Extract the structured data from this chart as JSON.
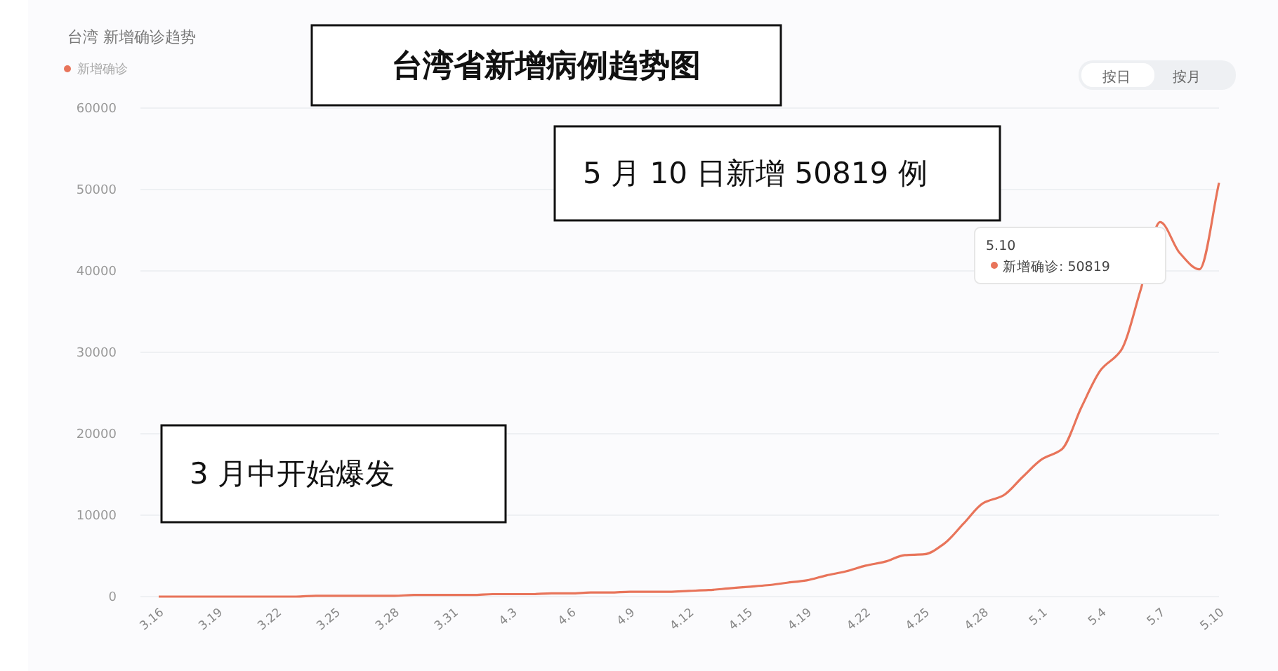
{
  "chart_data": {
    "type": "line",
    "title": "台湾省新增病例趋势图",
    "subtitle": "台湾 新增确诊趋势",
    "categories": [
      "3.16",
      null,
      null,
      "3.19",
      null,
      null,
      "3.22",
      null,
      null,
      "3.25",
      null,
      null,
      "3.28",
      null,
      null,
      "3.31",
      null,
      null,
      "4.3",
      null,
      null,
      "4.6",
      null,
      null,
      "4.9",
      null,
      null,
      "4.12",
      null,
      null,
      "4.15",
      null,
      null,
      "4.19",
      null,
      null,
      "4.22",
      null,
      null,
      "4.25",
      null,
      null,
      "4.28",
      null,
      null,
      "5.1",
      null,
      null,
      "5.4",
      null,
      null,
      "5.7",
      null,
      null,
      "5.10"
    ],
    "series": [
      {
        "name": "新增确诊",
        "color": "#e8745a",
        "values": [
          0,
          0,
          0,
          0,
          0,
          0,
          0,
          0,
          100,
          100,
          100,
          100,
          100,
          200,
          200,
          200,
          200,
          300,
          300,
          300,
          400,
          400,
          500,
          500,
          600,
          600,
          600,
          700,
          800,
          1000,
          1200,
          1400,
          1700,
          2000,
          2600,
          3100,
          3800,
          4300,
          5100,
          5200,
          6500,
          9000,
          11500,
          12400,
          14700,
          16900,
          18100,
          23300,
          27900,
          30200,
          37600,
          46000,
          42200,
          40200,
          50819
        ]
      }
    ],
    "ylim": [
      0,
      60000
    ],
    "yticks": [
      0,
      10000,
      20000,
      30000,
      40000,
      50000,
      60000
    ],
    "grid": "y",
    "legend": "top left",
    "marker": "none",
    "line_style": "solid",
    "annotations": [
      "5 月 10 日新增 50819 例",
      "3 月中开始爆发",
      "按日",
      "按月",
      "5.10",
      "新增确诊: 50819"
    ]
  }
}
